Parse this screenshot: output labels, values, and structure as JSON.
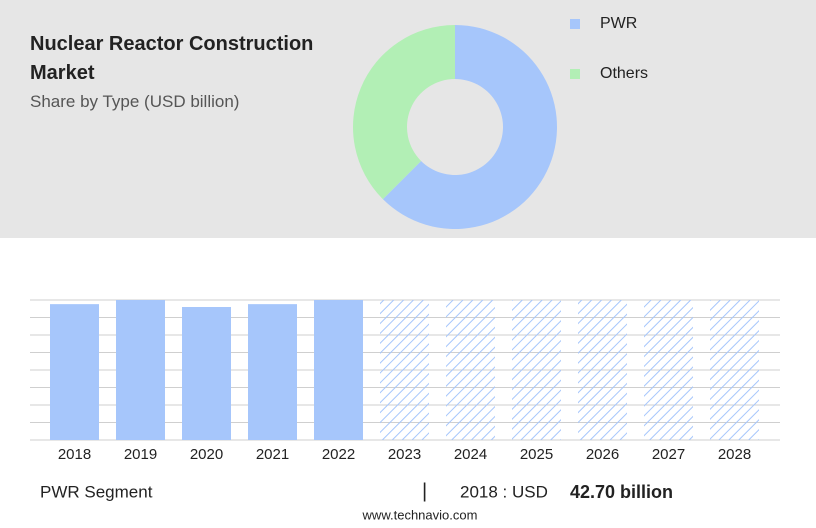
{
  "chart_data": [
    {
      "type": "donut",
      "title": "Nuclear Reactor Construction Market",
      "subtitle": "Share by Type (USD billion)",
      "series": [
        {
          "name": "PWR",
          "color": "#a6c6fb",
          "value": 62.5
        },
        {
          "name": "Others",
          "color": "#b2efb5",
          "value": 37.5
        }
      ]
    },
    {
      "type": "bar",
      "categories": [
        "2018",
        "2019",
        "2020",
        "2021",
        "2022",
        "2023",
        "2024",
        "2025",
        "2026",
        "2027",
        "2028"
      ],
      "values": [
        42.7,
        44,
        41.8,
        42.7,
        44,
        44,
        44,
        44,
        44,
        44,
        44
      ],
      "color": "#a6c6fb",
      "hatch_from": "2023",
      "ylim": [
        0,
        44
      ],
      "yticks": [
        0,
        5.5,
        11,
        16.5,
        22,
        27.5,
        33,
        38.5,
        44
      ],
      "grid": true
    }
  ],
  "footer": {
    "segment": "PWR Segment",
    "year_label": "2018 : USD",
    "value_label": "42.70 billion",
    "url": "www.technavio.com"
  }
}
